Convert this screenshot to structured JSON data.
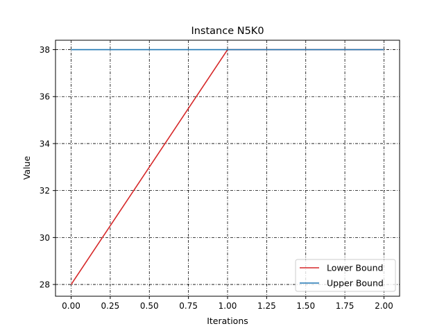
{
  "chart_data": {
    "type": "line",
    "title": "Instance N5K0",
    "xlabel": "Iterations",
    "ylabel": "Value",
    "xlim": [
      -0.1,
      2.1
    ],
    "ylim": [
      27.5,
      38.4
    ],
    "xticks": [
      0.0,
      0.25,
      0.5,
      0.75,
      1.0,
      1.25,
      1.5,
      1.75,
      2.0
    ],
    "xtick_labels": [
      "0.00",
      "0.25",
      "0.50",
      "0.75",
      "1.00",
      "1.25",
      "1.50",
      "1.75",
      "2.00"
    ],
    "yticks": [
      28,
      30,
      32,
      34,
      36,
      38
    ],
    "ytick_labels": [
      "28",
      "30",
      "32",
      "34",
      "36",
      "38"
    ],
    "grid": true,
    "legend_position": "bottom-right",
    "series": [
      {
        "name": "Lower Bound",
        "color": "#d62728",
        "x": [
          0,
          1,
          2
        ],
        "y": [
          28,
          38,
          38
        ]
      },
      {
        "name": "Upper Bound",
        "color": "#1f77b4",
        "x": [
          0,
          1,
          2
        ],
        "y": [
          38,
          38,
          38
        ]
      }
    ]
  }
}
